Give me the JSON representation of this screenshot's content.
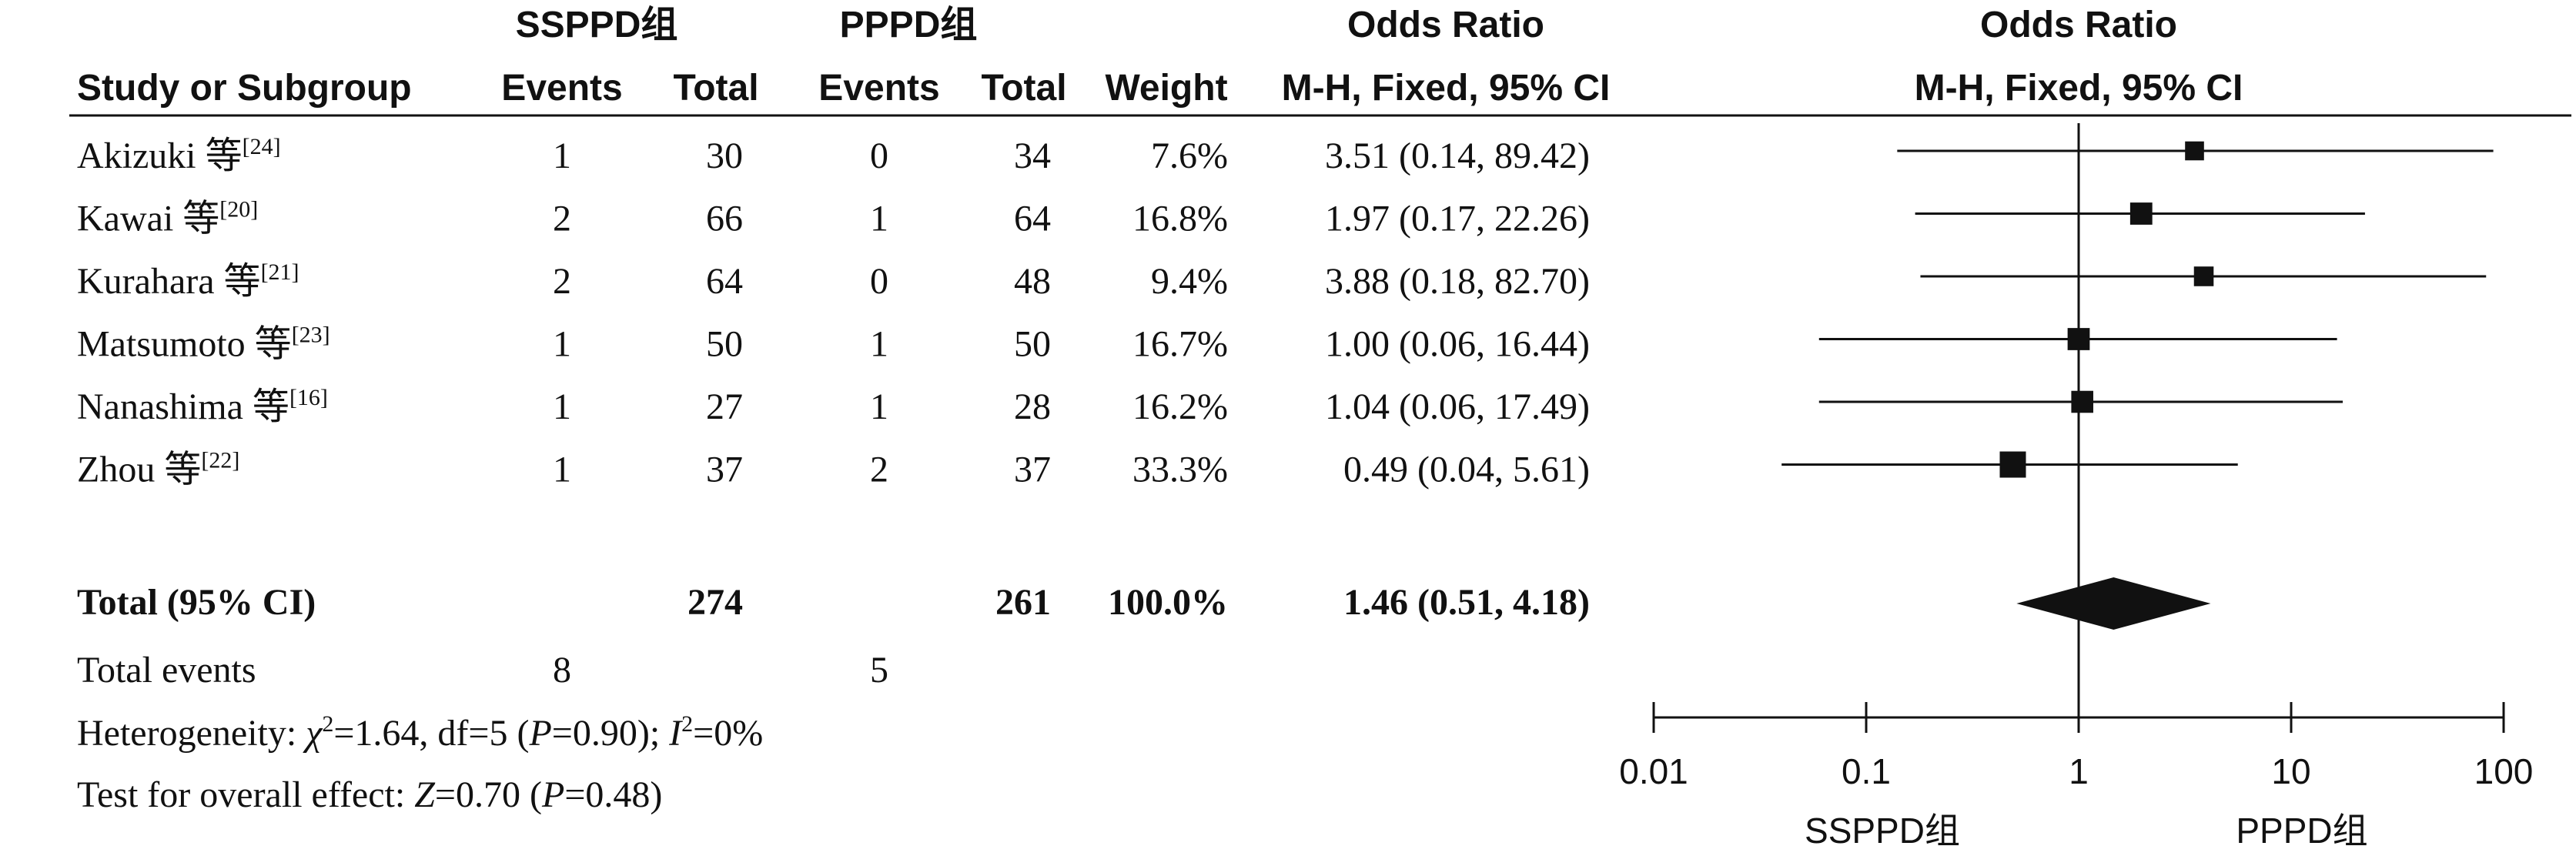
{
  "headers": {
    "group1": "SSPPD组",
    "group2": "PPPD组",
    "odds_ratio_table": "Odds Ratio",
    "odds_ratio_plot": "Odds Ratio",
    "study": "Study or Subgroup",
    "events1": "Events",
    "total1": "Total",
    "events2": "Events",
    "total2": "Total",
    "weight": "Weight",
    "method_table": "M-H, Fixed, 95% CI",
    "method_plot": "M-H, Fixed, 95% CI"
  },
  "studies": [
    {
      "name": "Akizuki 等",
      "ref": "[24]",
      "events1": "1",
      "total1": "30",
      "events2": "0",
      "total2": "34",
      "weight": "7.6%",
      "ci_text": "3.51 (0.14, 89.42)"
    },
    {
      "name": "Kawai 等",
      "ref": "[20]",
      "events1": "2",
      "total1": "66",
      "events2": "1",
      "total2": "64",
      "weight": "16.8%",
      "ci_text": "1.97 (0.17, 22.26)"
    },
    {
      "name": "Kurahara 等",
      "ref": "[21]",
      "events1": "2",
      "total1": "64",
      "events2": "0",
      "total2": "48",
      "weight": "9.4%",
      "ci_text": "3.88 (0.18, 82.70)"
    },
    {
      "name": "Matsumoto 等",
      "ref": "[23]",
      "events1": "1",
      "total1": "50",
      "events2": "1",
      "total2": "50",
      "weight": "16.7%",
      "ci_text": "1.00 (0.06, 16.44)"
    },
    {
      "name": "Nanashima 等",
      "ref": "[16]",
      "events1": "1",
      "total1": "27",
      "events2": "1",
      "total2": "28",
      "weight": "16.2%",
      "ci_text": "1.04 (0.06, 17.49)"
    },
    {
      "name": "Zhou 等",
      "ref": "[22]",
      "events1": "1",
      "total1": "37",
      "events2": "2",
      "total2": "37",
      "weight": "33.3%",
      "ci_text": "0.49 (0.04, 5.61)"
    }
  ],
  "total": {
    "label": "Total (95% CI)",
    "total1": "274",
    "total2": "261",
    "weight": "100.0%",
    "ci_text": "1.46 (0.51, 4.18)"
  },
  "total_events": {
    "label": "Total events",
    "events1": "8",
    "events2": "5"
  },
  "heterogeneity": {
    "prefix": "Heterogeneity: ",
    "chi": "χ",
    "chi_value": "=1.64, df=5 (",
    "p": "P",
    "p_value": "=0.90); ",
    "i": "I",
    "i_value": "=0%"
  },
  "overall": {
    "prefix": "Test for overall effect: ",
    "z": "Z",
    "z_value": "=0.70 (",
    "p": "P",
    "p_value": "=0.48)"
  },
  "favours": {
    "left": "SSPPD组",
    "right": "PPPD组"
  },
  "chart_data": {
    "type": "forest",
    "xscale": "log",
    "xlim": [
      0.01,
      100
    ],
    "xticks": [
      0.01,
      0.1,
      1,
      10,
      100
    ],
    "xtick_labels": [
      "0.01",
      "0.1",
      "1",
      "10",
      "100"
    ],
    "reference_line": 1,
    "studies": [
      {
        "name": "Akizuki 等",
        "or": 3.51,
        "lo": 0.14,
        "hi": 89.42,
        "weight": 7.6
      },
      {
        "name": "Kawai 等",
        "or": 1.97,
        "lo": 0.17,
        "hi": 22.26,
        "weight": 16.8
      },
      {
        "name": "Kurahara 等",
        "or": 3.88,
        "lo": 0.18,
        "hi": 82.7,
        "weight": 9.4
      },
      {
        "name": "Matsumoto 等",
        "or": 1.0,
        "lo": 0.06,
        "hi": 16.44,
        "weight": 16.7
      },
      {
        "name": "Nanashima 等",
        "or": 1.04,
        "lo": 0.06,
        "hi": 17.49,
        "weight": 16.2
      },
      {
        "name": "Zhou 等",
        "or": 0.49,
        "lo": 0.04,
        "hi": 5.61,
        "weight": 33.3
      }
    ],
    "pooled": {
      "or": 1.46,
      "lo": 0.51,
      "hi": 4.18
    },
    "colors": {
      "ink": "#111111"
    }
  }
}
